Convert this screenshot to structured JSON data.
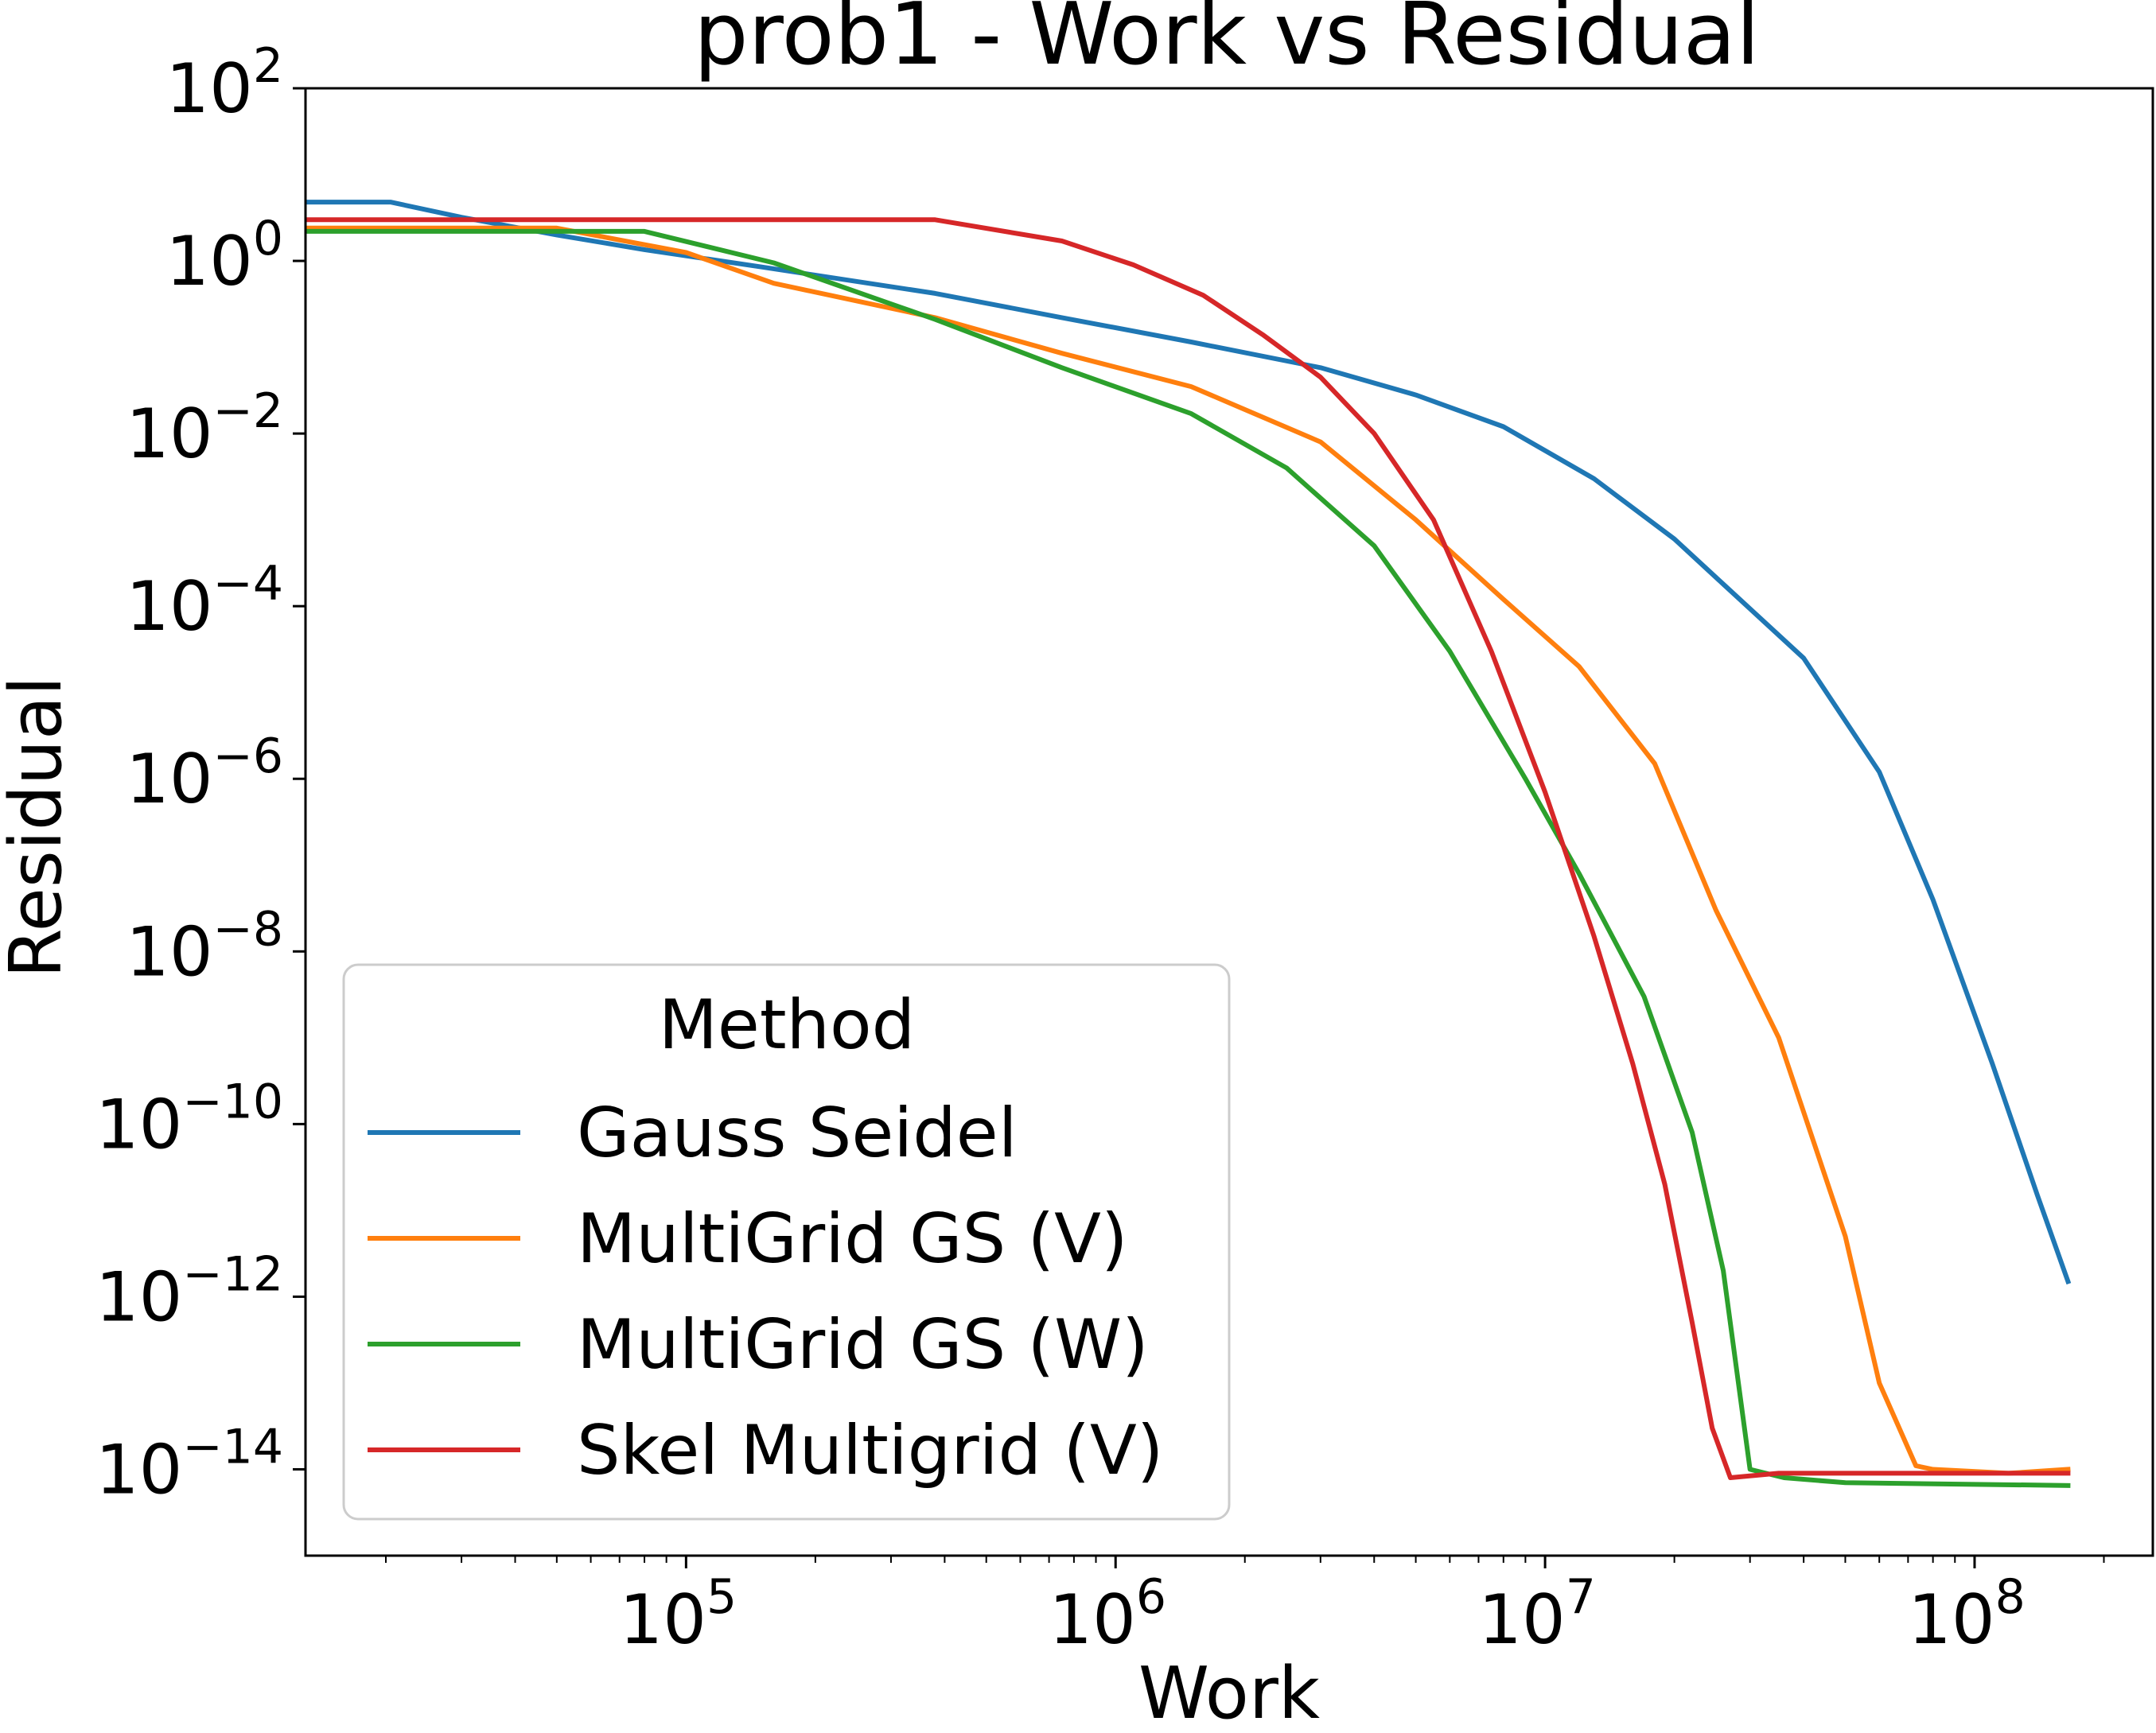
{
  "chart_data": {
    "type": "line",
    "title": "prob1 - Work vs Residual",
    "xlabel": "Work",
    "ylabel": "Residual",
    "xscale": "log",
    "yscale": "log",
    "xlim": [
      13000,
      260000000
    ],
    "ylim": [
      1e-15,
      100
    ],
    "x_ticks": [
      {
        "base": "10",
        "exp": "5",
        "value": 100000
      },
      {
        "base": "10",
        "exp": "6",
        "value": 1000000
      },
      {
        "base": "10",
        "exp": "7",
        "value": 10000000
      },
      {
        "base": "10",
        "exp": "8",
        "value": 100000000
      }
    ],
    "y_ticks": [
      {
        "base": "10",
        "exp": "2",
        "value": 100.0
      },
      {
        "base": "10",
        "exp": "0",
        "value": 1.0
      },
      {
        "base": "10",
        "exp": "−2",
        "value": 0.01
      },
      {
        "base": "10",
        "exp": "−4",
        "value": 0.0001
      },
      {
        "base": "10",
        "exp": "−6",
        "value": 1e-06
      },
      {
        "base": "10",
        "exp": "−8",
        "value": 1e-08
      },
      {
        "base": "10",
        "exp": "−10",
        "value": 1e-10
      },
      {
        "base": "10",
        "exp": "−12",
        "value": 1e-12
      },
      {
        "base": "10",
        "exp": "−14",
        "value": 1e-14
      }
    ],
    "legend": {
      "title": "Method",
      "placement": "lower-left"
    },
    "series": [
      {
        "name": "Gauss Seidel",
        "color": "#1f77b4",
        "points": [
          [
            13000,
            4.8
          ],
          [
            20500,
            4.8
          ],
          [
            30000,
            3.2
          ],
          [
            50000,
            2.0
          ],
          [
            80000,
            1.35
          ],
          [
            150000,
            0.85
          ],
          [
            380000,
            0.42
          ],
          [
            750000,
            0.22
          ],
          [
            1500000,
            0.115
          ],
          [
            3000000,
            0.058
          ],
          [
            5000000,
            0.028
          ],
          [
            8000000,
            0.012
          ],
          [
            13000000,
            0.003
          ],
          [
            20000000,
            0.0006
          ],
          [
            26000000,
            0.00018
          ],
          [
            40000000,
            2.5e-05
          ],
          [
            60000000,
            1.2e-06
          ],
          [
            80000000,
            4e-08
          ],
          [
            110000000,
            5e-10
          ],
          [
            140000000,
            1.5e-11
          ],
          [
            165000000,
            1.5e-12
          ]
        ]
      },
      {
        "name": "MultiGrid GS (V)",
        "color": "#ff7f0e",
        "points": [
          [
            13000,
            2.4
          ],
          [
            50000,
            2.4
          ],
          [
            100000,
            1.25
          ],
          [
            160000,
            0.55
          ],
          [
            380000,
            0.22
          ],
          [
            750000,
            0.085
          ],
          [
            1500000,
            0.035
          ],
          [
            3000000,
            0.008
          ],
          [
            5000000,
            0.001
          ],
          [
            8000000,
            0.00012
          ],
          [
            12000000,
            2e-05
          ],
          [
            18000000,
            1.5e-06
          ],
          [
            25000000,
            3e-08
          ],
          [
            35000000,
            1e-09
          ],
          [
            50000000,
            5e-12
          ],
          [
            60000000,
            1e-13
          ],
          [
            73000000,
            1.1e-14
          ],
          [
            80000000,
            1e-14
          ],
          [
            120000000,
            9e-15
          ],
          [
            165000000,
            1e-14
          ]
        ]
      },
      {
        "name": "MultiGrid GS (W)",
        "color": "#2ca02c",
        "points": [
          [
            13000,
            2.2
          ],
          [
            80000,
            2.2
          ],
          [
            160000,
            0.95
          ],
          [
            380000,
            0.21
          ],
          [
            750000,
            0.058
          ],
          [
            1500000,
            0.017
          ],
          [
            2500000,
            0.004
          ],
          [
            4000000,
            0.0005
          ],
          [
            6000000,
            3e-05
          ],
          [
            9000000,
            1e-06
          ],
          [
            12000000,
            8e-08
          ],
          [
            17000000,
            3e-09
          ],
          [
            22000000,
            8e-11
          ],
          [
            26000000,
            2e-12
          ],
          [
            30000000,
            1e-14
          ],
          [
            36000000,
            8e-15
          ],
          [
            50000000,
            7e-15
          ],
          [
            165000000,
            6.5e-15
          ]
        ]
      },
      {
        "name": "Skel Multigrid (V)",
        "color": "#d62728",
        "points": [
          [
            13000,
            3.0
          ],
          [
            380000,
            3.0
          ],
          [
            750000,
            1.7
          ],
          [
            1100000,
            0.9
          ],
          [
            1600000,
            0.4
          ],
          [
            2200000,
            0.14
          ],
          [
            3000000,
            0.045
          ],
          [
            4000000,
            0.01
          ],
          [
            5500000,
            0.001
          ],
          [
            7500000,
            3e-05
          ],
          [
            10000000,
            7e-07
          ],
          [
            13000000,
            1.5e-08
          ],
          [
            16000000,
            5e-10
          ],
          [
            19000000,
            2e-11
          ],
          [
            22000000,
            5e-13
          ],
          [
            24500000,
            3e-14
          ],
          [
            27000000,
            8e-15
          ],
          [
            35000000,
            9e-15
          ],
          [
            60000000,
            9e-15
          ],
          [
            165000000,
            9e-15
          ]
        ]
      }
    ]
  }
}
